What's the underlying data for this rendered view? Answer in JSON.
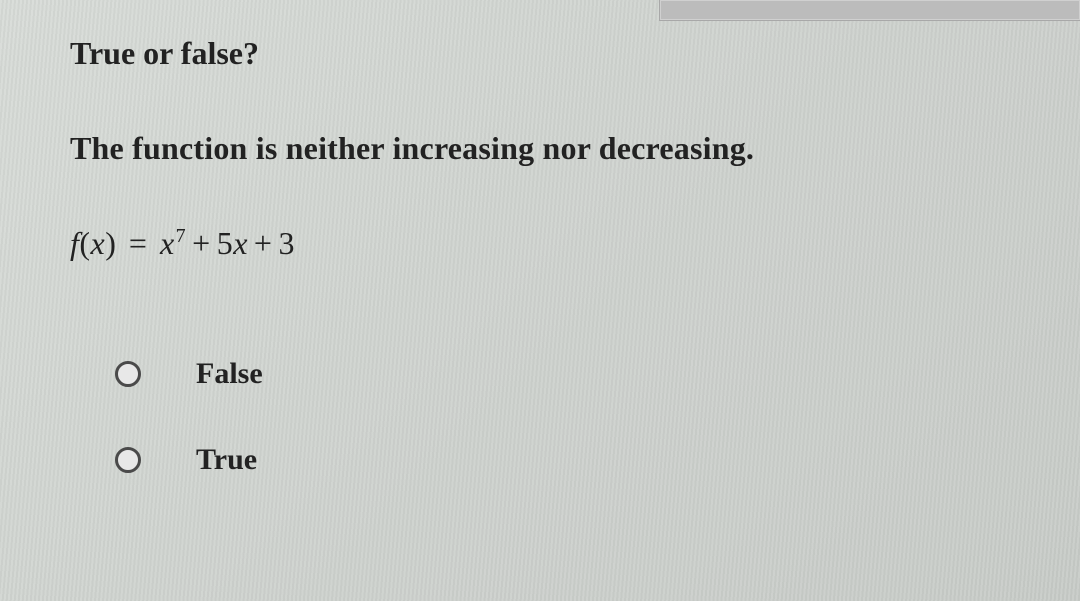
{
  "question": {
    "heading": "True or false?",
    "statement": "The function is neither increasing nor decreasing.",
    "equation": {
      "function_name": "f",
      "variable": "x",
      "terms": [
        {
          "coef": 1,
          "var": "x",
          "power": 7
        },
        {
          "coef": 5,
          "var": "x",
          "power": 1
        },
        {
          "coef": 3,
          "var": null,
          "power": 0
        }
      ],
      "display_plain": "f(x) = x^7 + 5x + 3"
    },
    "options": [
      {
        "label": "False",
        "selected": false
      },
      {
        "label": "True",
        "selected": false
      }
    ]
  },
  "style": {
    "background_color": "#d4d8d4",
    "text_color": "#222222",
    "radio_border_color": "#4a4a4a",
    "font_family": "Times New Roman",
    "heading_fontsize_pt": 24,
    "body_fontsize_pt": 24
  }
}
